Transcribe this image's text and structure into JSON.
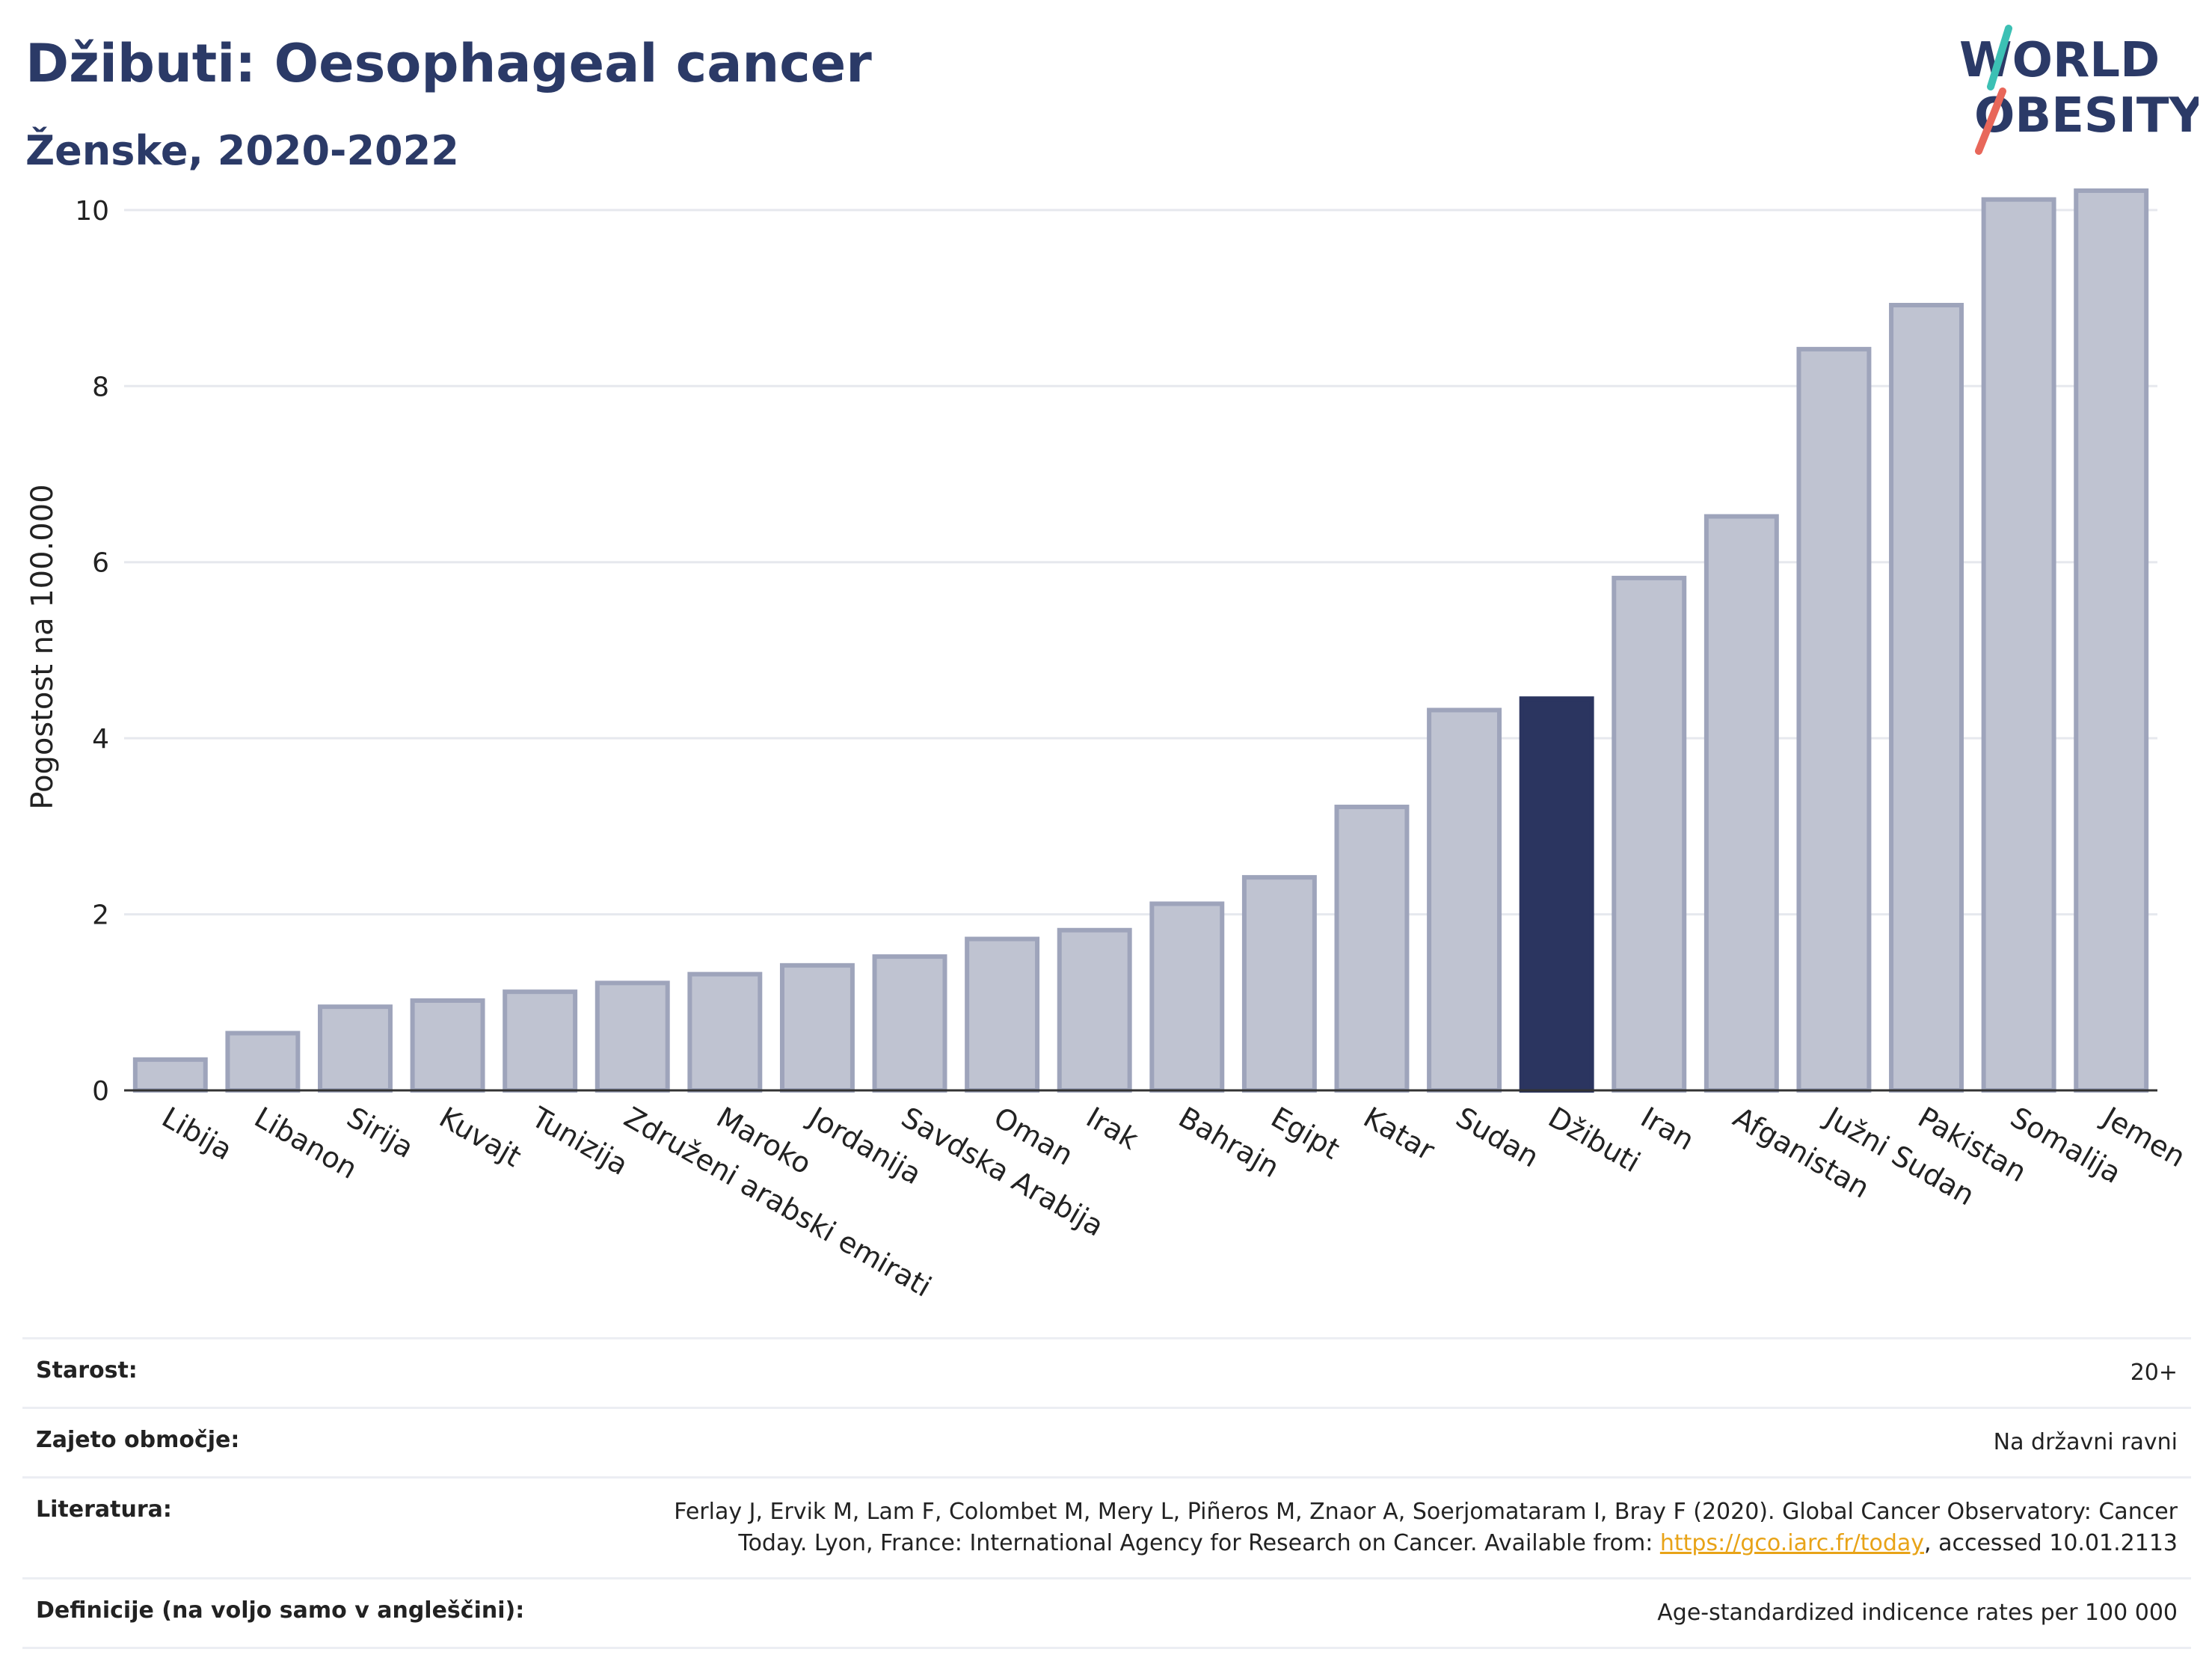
{
  "header": {
    "title": "Džibuti: Oesophageal cancer",
    "subtitle": "Ženske, 2020-2022"
  },
  "logo": {
    "line1": "WORLD",
    "line2": "OBESITY",
    "accent_colors": [
      "#3cc0b4",
      "#e8675a"
    ]
  },
  "colors": {
    "bar_default": "#bfc3d1",
    "bar_border": "#9ea4bb",
    "bar_highlight": "#2b3560",
    "title": "#2b3a67",
    "grid": "#e6e8ee",
    "axis": "#333333"
  },
  "chart_data": {
    "type": "bar",
    "ylabel": "Pogostost na 100.000",
    "xlabel": "",
    "ylim": [
      0,
      10.5
    ],
    "yticks": [
      0,
      2,
      4,
      6,
      8,
      10
    ],
    "grid": true,
    "highlight": "Džibuti",
    "categories": [
      "Libija",
      "Libanon",
      "Sirija",
      "Kuvajt",
      "Tunizija",
      "Združeni arabski emirati",
      "Maroko",
      "Jordanija",
      "Savdska Arabija",
      "Oman",
      "Irak",
      "Bahrajn",
      "Egipt",
      "Katar",
      "Sudan",
      "Džibuti",
      "Iran",
      "Afganistan",
      "Južni Sudan",
      "Pakistan",
      "Somalija",
      "Jemen"
    ],
    "values": [
      0.35,
      0.65,
      0.95,
      1.02,
      1.12,
      1.22,
      1.32,
      1.42,
      1.52,
      1.72,
      1.82,
      2.12,
      2.42,
      3.22,
      4.32,
      4.45,
      5.82,
      6.52,
      8.42,
      8.92,
      10.12,
      10.22
    ]
  },
  "info": {
    "rows": [
      {
        "label": "Starost:",
        "value": "20+"
      },
      {
        "label": "Zajeto območje:",
        "value": "Na državni ravni"
      },
      {
        "label": "Literatura:",
        "value_line1": "Ferlay J, Ervik M, Lam F, Colombet M, Mery L, Piñeros M, Znaor A, Soerjomataram I, Bray F (2020). Global Cancer Observatory: Cancer",
        "value_line2_pre": "Today. Lyon, France: International Agency for Research on Cancer. Available from: ",
        "link": "https://gco.iarc.fr/today",
        "value_line2_post": ", accessed 10.01.2113"
      },
      {
        "label": "Definicije (na voljo samo v angleščini):",
        "value": "Age-standardized indicence rates per 100 000"
      }
    ]
  }
}
